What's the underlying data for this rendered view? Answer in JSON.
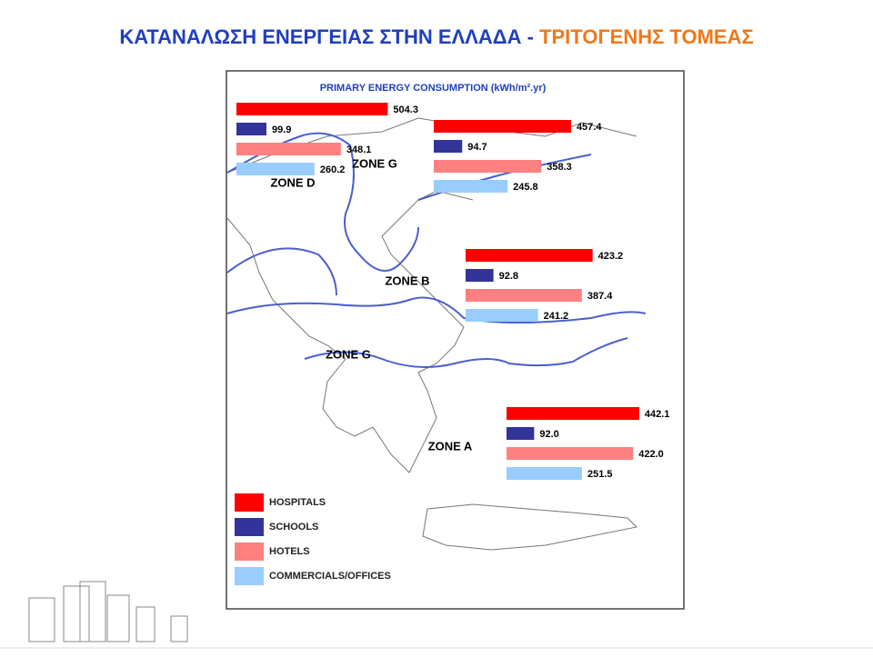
{
  "header": {
    "title_main": "ΚΑΤΑΝΑΛΩΣΗ ΕΝΕΡΓΕΙΑΣ ΣΤΗΝ ΕΛΛΑΔΑ - ",
    "title_accent": "ΤΡΙΤΟΓΕΝΗΣ ΤΟΜΕΑΣ"
  },
  "chart_data": {
    "type": "bar",
    "title": "PRIMARY ENERGY CONSUMPTION (kWh/m².yr)",
    "series": [
      {
        "name": "HOSPITALS",
        "color": "#ff0000"
      },
      {
        "name": "SCHOOLS",
        "color": "#333399"
      },
      {
        "name": "HOTELS",
        "color": "#ff8080"
      },
      {
        "name": "COMMERCIALS/OFFICES",
        "color": "#99ccff"
      }
    ],
    "groups": [
      {
        "zone": "ZONE D",
        "values": [
          504.3,
          99.9,
          348.1,
          260.2
        ],
        "value_labels": [
          "504.3",
          "99.9",
          "348.1",
          "260.2"
        ]
      },
      {
        "zone": "ZONE G",
        "values": [
          457.4,
          94.7,
          358.3,
          245.8
        ],
        "value_labels": [
          "457.4",
          "94.7",
          "358.3",
          "245.8"
        ]
      },
      {
        "zone": "ZONE B",
        "values": [
          423.2,
          92.8,
          387.4,
          241.2
        ],
        "value_labels": [
          "423.2",
          "92.8",
          "387.4",
          "241.2"
        ]
      },
      {
        "zone": "ZONE A",
        "values": [
          442.1,
          92.0,
          422.0,
          251.5
        ],
        "value_labels": [
          "442.1",
          "92.0",
          "422.0",
          "251.5"
        ]
      }
    ],
    "other_zone_labels": [
      "ZONE G"
    ]
  }
}
